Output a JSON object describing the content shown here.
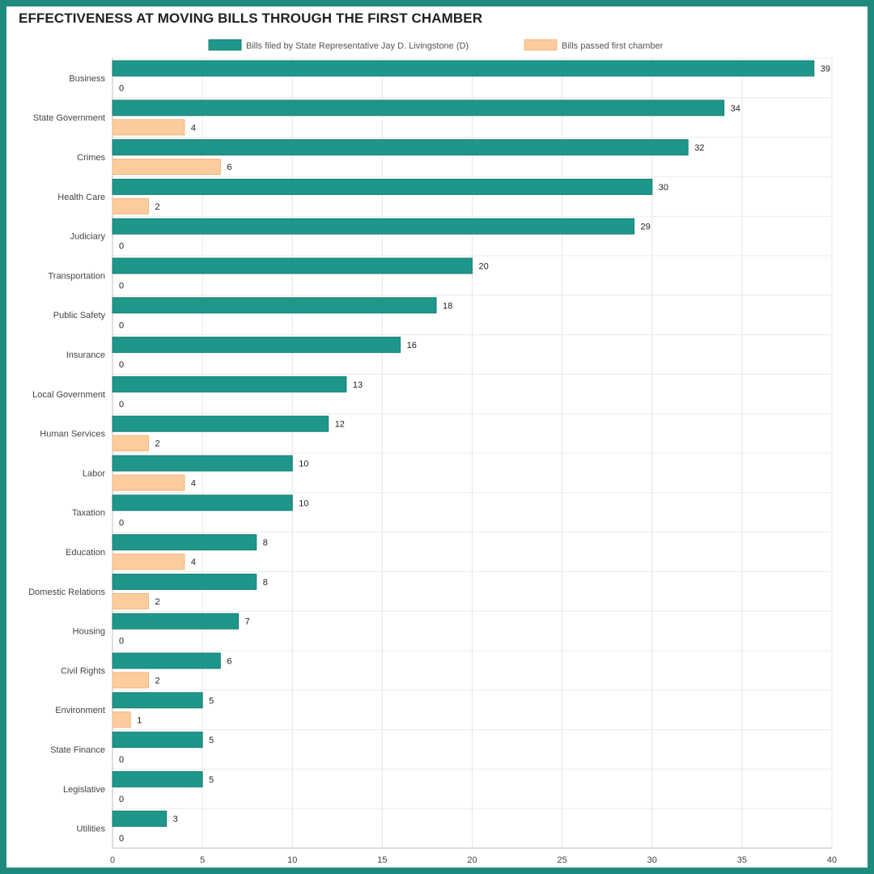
{
  "chart_data": {
    "type": "bar",
    "orientation": "horizontal",
    "title": "EFFECTIVENESS AT MOVING BILLS THROUGH THE FIRST CHAMBER",
    "categories": [
      "Business",
      "State Government",
      "Crimes",
      "Health Care",
      "Judiciary",
      "Transportation",
      "Public Safety",
      "Insurance",
      "Local Government",
      "Human Services",
      "Labor",
      "Taxation",
      "Education",
      "Domestic Relations",
      "Housing",
      "Civil Rights",
      "Environment",
      "State Finance",
      "Legislative",
      "Utilities"
    ],
    "series": [
      {
        "name": "Bills filed by State Representative Jay D. Livingstone (D)",
        "color": "#1e978a",
        "values": [
          39,
          34,
          32,
          30,
          29,
          20,
          18,
          16,
          13,
          12,
          10,
          10,
          8,
          8,
          7,
          6,
          5,
          5,
          5,
          3
        ]
      },
      {
        "name": "Bills passed first chamber",
        "color": "#fbcc9d",
        "values": [
          0,
          4,
          6,
          2,
          0,
          0,
          0,
          0,
          0,
          2,
          4,
          0,
          4,
          2,
          0,
          2,
          1,
          0,
          0,
          0
        ]
      }
    ],
    "xlim": [
      0,
      40
    ],
    "xticks": [
      0,
      5,
      10,
      15,
      20,
      25,
      30,
      35,
      40
    ],
    "grid": true,
    "legend_position": "top-center",
    "data_labels": true
  }
}
